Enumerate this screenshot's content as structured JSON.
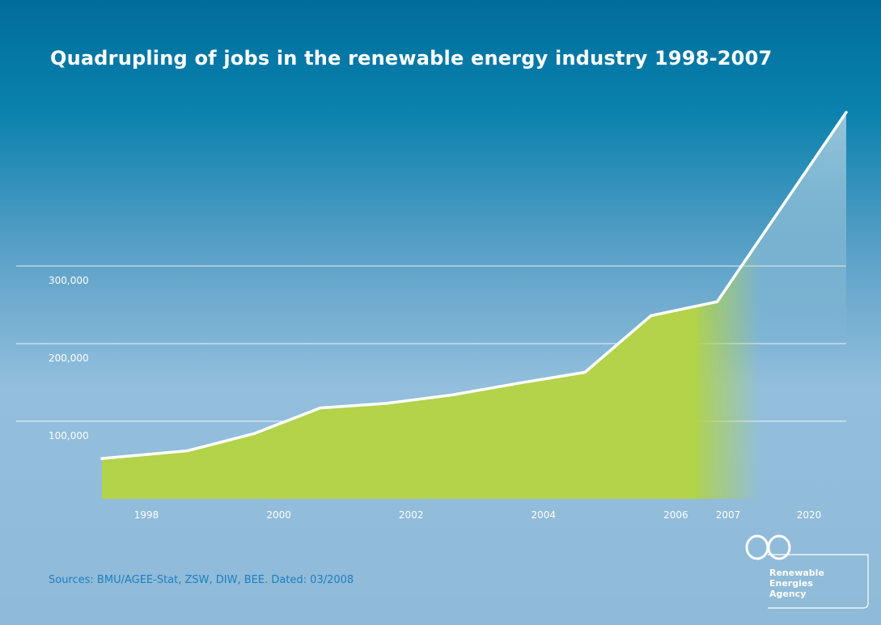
{
  "title": "Quadrupling of jobs in the renewable energy industry 1998-2007",
  "source": "Sources: BMU/AGEE-Stat, ZSW, DIW, BEE. Dated: 03/2008",
  "logo": {
    "icon": "infinity-icon",
    "lines": [
      "Renewable",
      "Energies",
      "Agency"
    ]
  },
  "colors": {
    "area_fill": "#b2d34a",
    "projection_fill": "#a9c7de",
    "line": "#ffffff",
    "grid": "#ffffff",
    "source_text": "#1d7fc0"
  },
  "chart_data": {
    "type": "area",
    "title": "Quadrupling of jobs in the renewable energy industry 1998-2007",
    "xlabel": "",
    "ylabel": "",
    "x_tick_labels": [
      "1998",
      "2000",
      "2002",
      "2004",
      "2006",
      "2007",
      "2020"
    ],
    "y_tick_labels": [
      "100,000",
      "200,000",
      "300,000"
    ],
    "ylim": [
      0,
      500000
    ],
    "grid": true,
    "series": [
      {
        "points": [
          {
            "x": 1997.6,
            "y": 52000
          },
          {
            "x": 1998.6,
            "y": 62000
          },
          {
            "x": 1999.6,
            "y": 84000
          },
          {
            "x": 2000.6,
            "y": 117000
          },
          {
            "x": 2001.6,
            "y": 123000
          },
          {
            "x": 2002.6,
            "y": 134000
          },
          {
            "x": 2003.6,
            "y": 149000
          },
          {
            "x": 2004.6,
            "y": 163000
          },
          {
            "x": 2005.6,
            "y": 236000
          },
          {
            "x": 2006.6,
            "y": 254000
          }
        ]
      },
      {
        "projection": true,
        "points": [
          {
            "x": 2006.6,
            "y": 254000
          },
          {
            "x": 2020,
            "y": 498000
          }
        ]
      }
    ]
  }
}
